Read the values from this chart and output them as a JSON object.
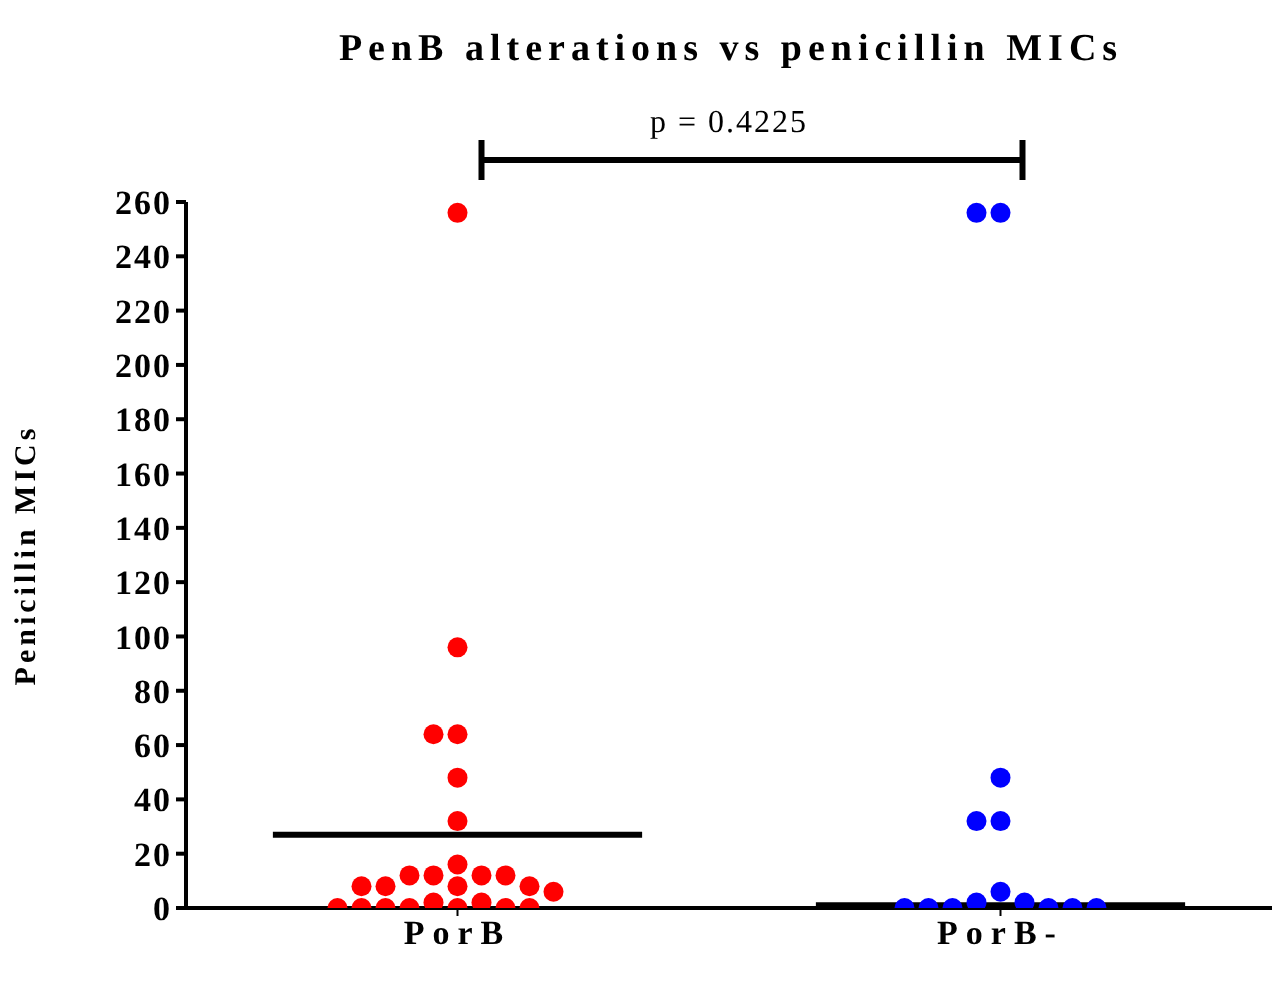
{
  "chart_data": {
    "type": "scatter",
    "title": "PenB alterations vs penicillin MICs",
    "ylabel": "Penicillin MICs",
    "categories": [
      "PorB",
      "PorB-"
    ],
    "series": [
      {
        "color": "#ff0000",
        "x": [
          "PorB",
          "PorB",
          "PorB",
          "PorB",
          "PorB",
          "PorB",
          "PorB",
          "PorB",
          "PorB",
          "PorB",
          "PorB",
          "PorB",
          "PorB",
          "PorB",
          "PorB",
          "PorB",
          "PorB",
          "PorB",
          "PorB",
          "PorB",
          "PorB",
          "PorB",
          "PorB",
          "PorB",
          "PorB"
        ],
        "values": [
          256,
          96,
          64,
          64,
          48,
          32,
          16,
          12,
          12,
          12,
          12,
          8,
          8,
          8,
          8,
          6,
          2,
          2,
          0,
          0,
          0,
          0,
          0,
          0,
          0
        ]
      },
      {
        "color": "#0000ff",
        "x": [
          "PorB-",
          "PorB-",
          "PorB-",
          "PorB-",
          "PorB-",
          "PorB-",
          "PorB-",
          "PorB-",
          "PorB-",
          "PorB-",
          "PorB-",
          "PorB-",
          "PorB-",
          "PorB-"
        ],
        "values": [
          256,
          256,
          48,
          32,
          32,
          6,
          2,
          2,
          0,
          0,
          0,
          0,
          0,
          0
        ]
      }
    ],
    "ref_lines": [
      {
        "axis": "y",
        "value": 27,
        "color": "#000000"
      },
      {
        "axis": "y",
        "value": 1,
        "color": "#000000"
      }
    ],
    "ylim": [
      0,
      260
    ],
    "yticks": [
      0,
      20,
      40,
      60,
      80,
      100,
      120,
      140,
      160,
      180,
      200,
      220,
      240,
      260
    ],
    "marker": "circle",
    "annotations": [
      "p = 0.4225"
    ]
  }
}
